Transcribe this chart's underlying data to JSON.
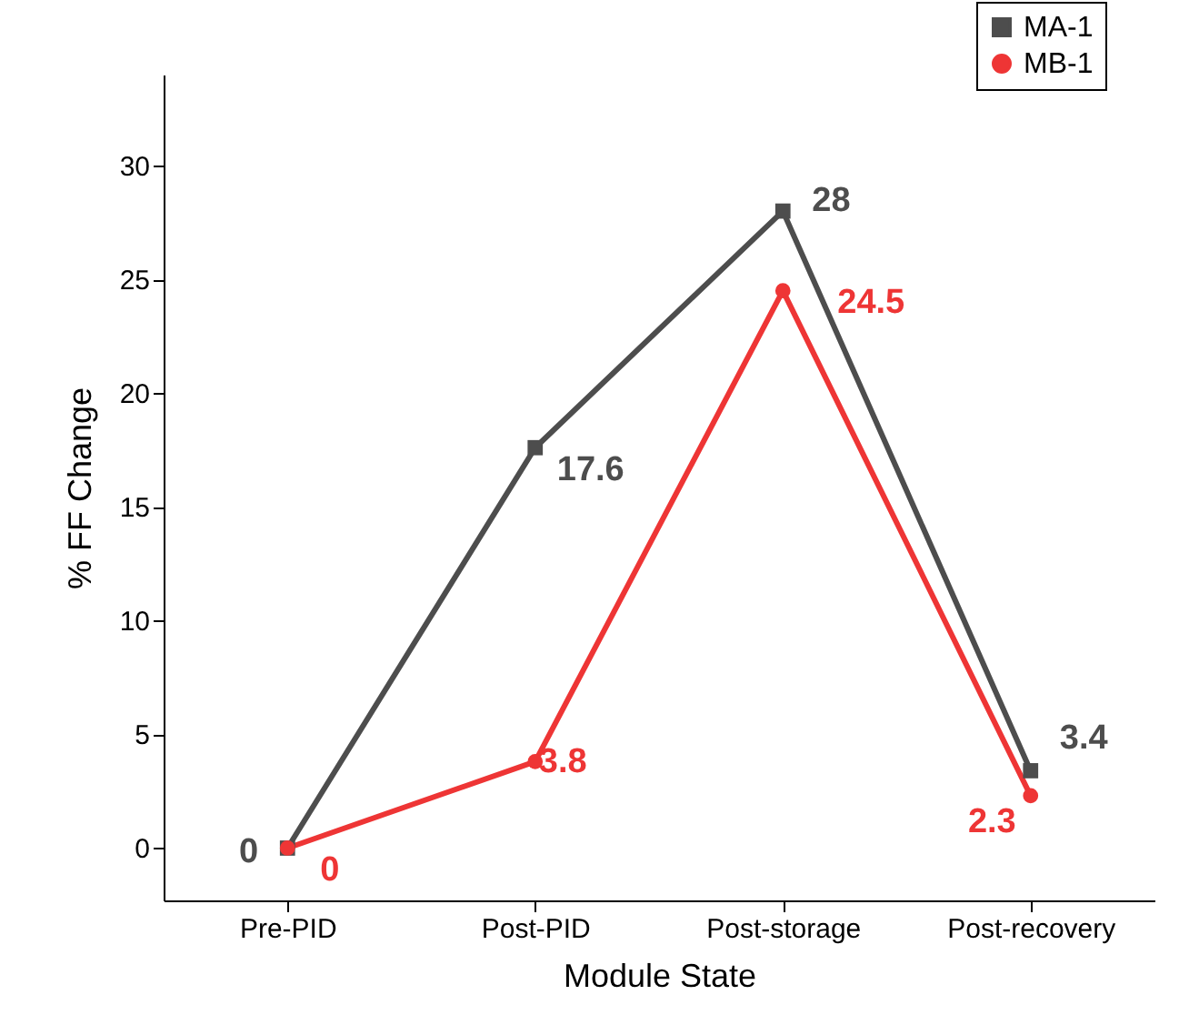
{
  "chart_data": {
    "type": "line",
    "xlabel": "Module State",
    "ylabel": "% FF Change",
    "categories": [
      "Pre-PID",
      "Post-PID",
      "Post-storage",
      "Post-recovery"
    ],
    "series": [
      {
        "name": "MA-1",
        "color": "#4d4d4d",
        "marker": "square",
        "values": [
          0,
          17.6,
          28,
          3.4
        ]
      },
      {
        "name": "MB-1",
        "color": "#ee3535",
        "marker": "circle",
        "values": [
          0,
          3.8,
          24.5,
          2.3
        ]
      }
    ],
    "ylim": [
      -2.3,
      34
    ],
    "yticks": [
      0,
      5,
      10,
      15,
      20,
      25,
      30
    ],
    "grid": false,
    "legend": "top right",
    "data_labels": true
  }
}
